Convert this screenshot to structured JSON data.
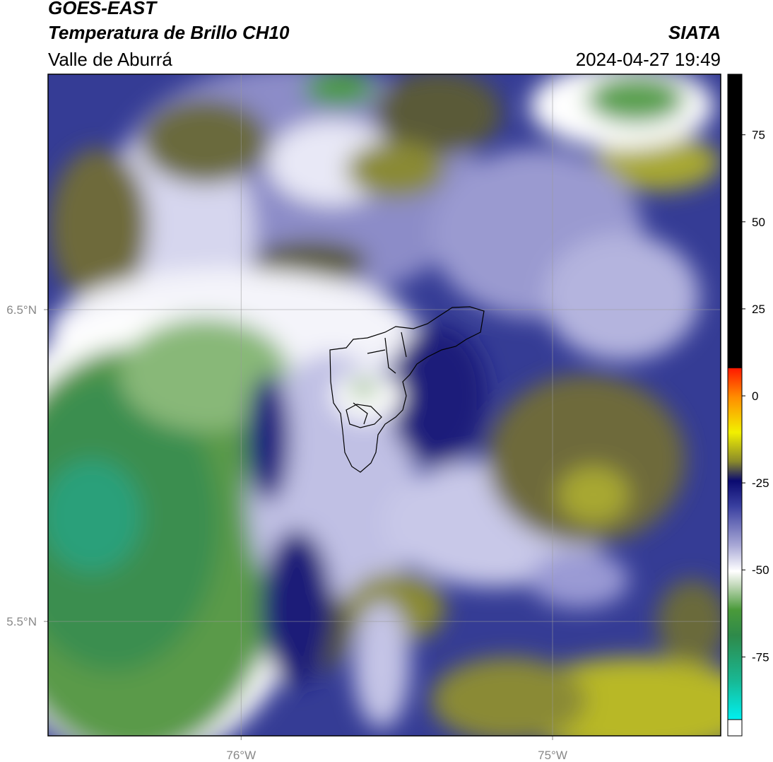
{
  "header": {
    "title": "GOES-EAST",
    "subtitle": "Temperatura de Brillo CH10",
    "region": "Valle de Aburrá",
    "source": "SIATA",
    "datetime": "2024-04-27 19:49"
  },
  "map": {
    "xlim": [
      -76.62,
      -74.46
    ],
    "ylim": [
      5.133,
      7.255
    ],
    "xticks": [
      {
        "value": -76,
        "label": "76°W"
      },
      {
        "value": -75,
        "label": "75°W"
      }
    ],
    "yticks": [
      {
        "value": 5.5,
        "label": "5.5°N"
      },
      {
        "value": 6.5,
        "label": "6.5°N"
      }
    ],
    "grid": true
  },
  "colorbar": {
    "lim": [
      -93,
      92.4
    ],
    "ticks": [
      -75,
      -50,
      -25,
      0,
      25,
      50,
      75
    ]
  }
}
